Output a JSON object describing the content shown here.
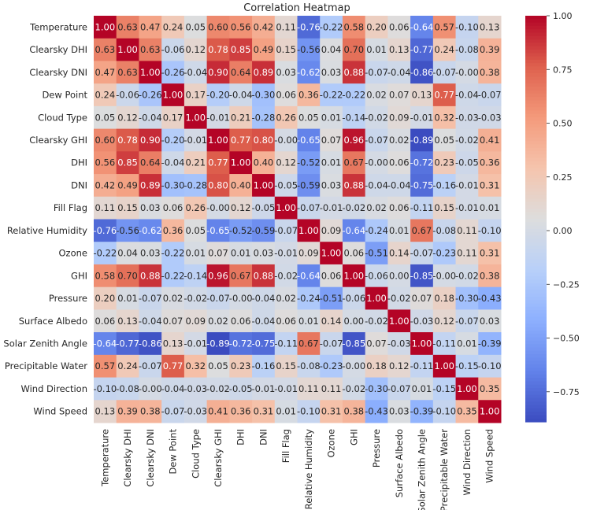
{
  "chart_data": {
    "type": "heatmap",
    "title": "Correlation Heatmap",
    "labels": [
      "Temperature",
      "Clearsky DHI",
      "Clearsky DNI",
      "Dew Point",
      "Cloud Type",
      "Clearsky GHI",
      "DHI",
      "DNI",
      "Fill Flag",
      "Relative Humidity",
      "Ozone",
      "GHI",
      "Pressure",
      "Surface Albedo",
      "Solar Zenith Angle",
      "Precipitable Water",
      "Wind Direction",
      "Wind Speed"
    ],
    "matrix": [
      [
        1.0,
        0.63,
        0.47,
        0.24,
        0.05,
        0.6,
        0.56,
        0.42,
        0.11,
        -0.76,
        -0.22,
        0.58,
        0.2,
        0.06,
        -0.64,
        0.57,
        -0.1,
        0.13
      ],
      [
        0.63,
        1.0,
        0.63,
        -0.06,
        0.12,
        0.78,
        0.85,
        0.49,
        0.15,
        -0.56,
        0.04,
        0.7,
        0.01,
        0.13,
        -0.77,
        0.24,
        -0.08,
        0.39
      ],
      [
        0.47,
        0.63,
        1.0,
        -0.26,
        -0.04,
        0.9,
        0.64,
        0.89,
        0.03,
        -0.62,
        0.03,
        0.88,
        -0.07,
        -0.04,
        -0.86,
        -0.07,
        -0.0,
        0.38
      ],
      [
        0.24,
        -0.06,
        -0.26,
        1.0,
        0.17,
        -0.2,
        -0.04,
        -0.3,
        0.06,
        0.36,
        -0.22,
        -0.22,
        0.02,
        0.07,
        0.13,
        0.77,
        -0.04,
        -0.07
      ],
      [
        0.05,
        0.12,
        -0.04,
        0.17,
        1.0,
        -0.01,
        0.21,
        -0.28,
        0.26,
        0.05,
        0.01,
        -0.14,
        -0.02,
        0.09,
        -0.01,
        0.32,
        -0.03,
        -0.03
      ],
      [
        0.6,
        0.78,
        0.9,
        -0.2,
        -0.01,
        1.0,
        0.77,
        0.8,
        -0.0,
        -0.65,
        0.07,
        0.96,
        -0.07,
        0.02,
        -0.89,
        0.05,
        -0.02,
        0.41
      ],
      [
        0.56,
        0.85,
        0.64,
        -0.04,
        0.21,
        0.77,
        1.0,
        0.4,
        0.12,
        -0.52,
        0.01,
        0.67,
        -0.0,
        0.06,
        -0.72,
        0.23,
        -0.05,
        0.36
      ],
      [
        0.42,
        0.49,
        0.89,
        -0.3,
        -0.28,
        0.8,
        0.4,
        1.0,
        -0.05,
        -0.59,
        0.03,
        0.88,
        -0.04,
        -0.04,
        -0.75,
        -0.16,
        -0.01,
        0.31
      ],
      [
        0.11,
        0.15,
        0.03,
        0.06,
        0.26,
        -0.0,
        0.12,
        -0.05,
        1.0,
        -0.07,
        -0.01,
        -0.02,
        0.02,
        0.06,
        -0.11,
        0.15,
        -0.01,
        0.01
      ],
      [
        -0.76,
        -0.56,
        -0.62,
        0.36,
        0.05,
        -0.65,
        -0.52,
        -0.59,
        -0.07,
        1.0,
        0.09,
        -0.64,
        -0.24,
        0.01,
        0.67,
        -0.08,
        0.11,
        -0.1
      ],
      [
        -0.22,
        0.04,
        0.03,
        -0.22,
        0.01,
        0.07,
        0.01,
        0.03,
        -0.01,
        0.09,
        1.0,
        0.06,
        -0.51,
        0.14,
        -0.07,
        -0.23,
        0.11,
        0.31
      ],
      [
        0.58,
        0.7,
        0.88,
        -0.22,
        -0.14,
        0.96,
        0.67,
        0.88,
        -0.02,
        -0.64,
        0.06,
        1.0,
        -0.06,
        0.0,
        -0.85,
        -0.0,
        -0.02,
        0.38
      ],
      [
        0.2,
        0.01,
        -0.07,
        0.02,
        -0.02,
        -0.07,
        -0.0,
        -0.04,
        0.02,
        -0.24,
        -0.51,
        -0.06,
        1.0,
        -0.02,
        0.07,
        0.18,
        -0.3,
        -0.43
      ],
      [
        0.06,
        0.13,
        -0.04,
        0.07,
        0.09,
        0.02,
        0.06,
        -0.04,
        0.06,
        0.01,
        0.14,
        0.0,
        -0.02,
        1.0,
        -0.03,
        0.12,
        -0.07,
        0.03
      ],
      [
        -0.64,
        -0.77,
        -0.86,
        0.13,
        -0.01,
        -0.89,
        -0.72,
        -0.75,
        -0.11,
        0.67,
        -0.07,
        -0.85,
        0.07,
        -0.03,
        1.0,
        -0.11,
        0.01,
        -0.39
      ],
      [
        0.57,
        0.24,
        -0.07,
        0.77,
        0.32,
        0.05,
        0.23,
        -0.16,
        0.15,
        -0.08,
        -0.23,
        -0.0,
        0.18,
        0.12,
        -0.11,
        1.0,
        -0.15,
        -0.1
      ],
      [
        -0.1,
        -0.08,
        -0.0,
        -0.04,
        -0.03,
        -0.02,
        -0.05,
        -0.01,
        -0.01,
        0.11,
        0.11,
        -0.02,
        -0.3,
        -0.07,
        0.01,
        -0.15,
        1.0,
        0.35
      ],
      [
        0.13,
        0.39,
        0.38,
        -0.07,
        -0.03,
        0.41,
        0.36,
        0.31,
        0.01,
        -0.1,
        0.31,
        0.38,
        -0.43,
        0.03,
        -0.39,
        -0.1,
        0.35,
        1.0
      ]
    ],
    "colormap": "coolwarm",
    "vmin": -0.89,
    "vmax": 1.0,
    "colorbar_ticks": [
      "1.00",
      "0.75",
      "0.50",
      "0.25",
      "0.00",
      "−0.25",
      "−0.50",
      "−0.75"
    ],
    "annotations": "cell values with 2 decimals",
    "colors": {
      "negative": "#3b4cc0",
      "neutral": "#dddddd",
      "positive": "#b40426"
    }
  }
}
